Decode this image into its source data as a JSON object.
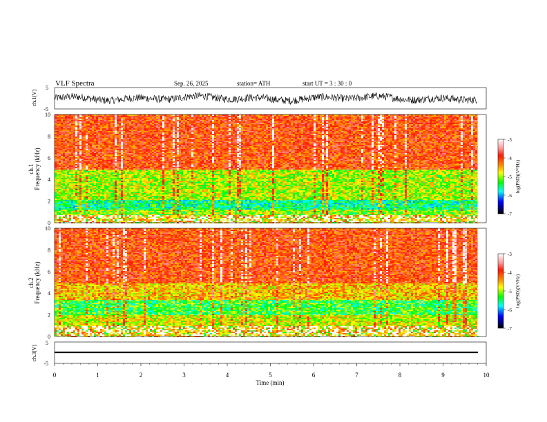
{
  "header": {
    "title": "VLF  Spectra",
    "date": "Sep. 26, 2025",
    "station": "station= ATH",
    "start_ut": "start  UT  =    3  : 30 : 0"
  },
  "chart_data": [
    {
      "type": "line",
      "panel": "ch1-waveform",
      "ylabel": "ch.1(V)",
      "ylim": [
        -5,
        5
      ],
      "yticks": [
        "5",
        "-5"
      ],
      "xlim": [
        0,
        10
      ],
      "series_description": "noisy waveform, roughly -3 to 3 V"
    },
    {
      "type": "heatmap",
      "panel": "ch1-spectrogram",
      "ylabel_channel": "ch.1",
      "ylabel": "Frequency  (kHz)",
      "ylim": [
        0,
        10
      ],
      "yticks": [
        "0",
        "2",
        "4",
        "6",
        "8",
        "10"
      ],
      "xlim": [
        0,
        9.8
      ],
      "bands": [
        {
          "from": 0.0,
          "to": 0.8,
          "level": "mixed"
        },
        {
          "from": 0.8,
          "to": 1.3,
          "level": -4.8
        },
        {
          "from": 1.3,
          "to": 2.2,
          "level": -5.2
        },
        {
          "from": 2.2,
          "to": 5.0,
          "level": -4.7
        },
        {
          "from": 5.0,
          "to": 10.0,
          "level": -3.9
        }
      ],
      "colorbar": {
        "label": "log(PSD)(V²/Hz)",
        "ticks": [
          "-3",
          "-4",
          "-5",
          "-6",
          "-7"
        ],
        "range": [
          -7,
          -3
        ]
      }
    },
    {
      "type": "heatmap",
      "panel": "ch2-spectrogram",
      "ylabel_channel": "ch.2",
      "ylabel": "Frequency  (kHz)",
      "ylim": [
        0,
        10
      ],
      "yticks": [
        "0",
        "2",
        "4",
        "6",
        "8",
        "10"
      ],
      "xlim": [
        0,
        9.8
      ],
      "bands": [
        {
          "from": 0.0,
          "to": 1.0,
          "level": "mixed"
        },
        {
          "from": 1.0,
          "to": 2.0,
          "level": -4.6
        },
        {
          "from": 2.0,
          "to": 3.5,
          "level": -5.0
        },
        {
          "from": 3.5,
          "to": 5.0,
          "level": -4.4
        },
        {
          "from": 5.0,
          "to": 10.0,
          "level": -3.9
        }
      ],
      "colorbar": {
        "label": "log(PSD)(V²/Hz)",
        "ticks": [
          "-3",
          "-4",
          "-5",
          "-6",
          "-7"
        ],
        "range": [
          -7,
          -3
        ]
      }
    },
    {
      "type": "line",
      "panel": "ch3-waveform",
      "ylabel": "ch.3(V)",
      "ylim": [
        -5,
        5
      ],
      "yticks": [
        "5",
        "-5"
      ],
      "xlim": [
        0,
        10
      ],
      "series_description": "near-constant at about -1.2 V"
    }
  ],
  "xaxis": {
    "label": "Time  (min)",
    "ticks": [
      "0",
      "1",
      "2",
      "3",
      "4",
      "5",
      "6",
      "7",
      "8",
      "9",
      "10"
    ]
  }
}
